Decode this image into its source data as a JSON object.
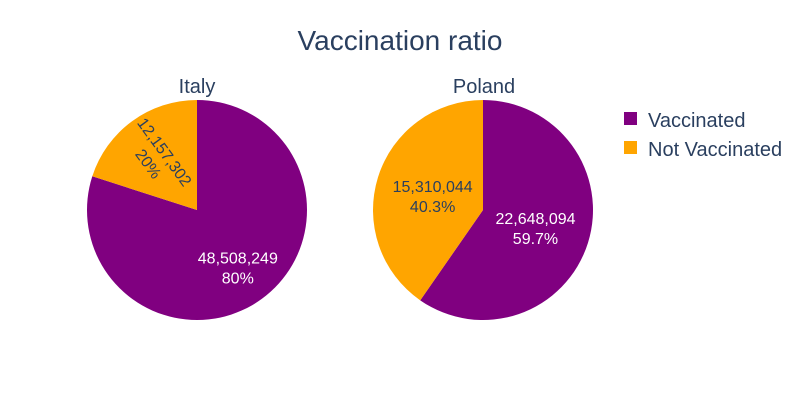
{
  "chart_data": {
    "type": "pie",
    "title": "Vaccination ratio",
    "legend": {
      "placement": "right",
      "entries": [
        {
          "label": "Vaccinated",
          "color": "#800080"
        },
        {
          "label": "Not Vaccinated",
          "color": "#FFA500"
        }
      ]
    },
    "pies": [
      {
        "name": "Italy",
        "slices": [
          {
            "label": "Vaccinated",
            "value": 48508249,
            "value_text": "48,508,249",
            "percent_text": "80%",
            "color": "#800080",
            "text_color": "#ffffff"
          },
          {
            "label": "Not Vaccinated",
            "value": 12157302,
            "value_text": "12,157,302",
            "percent_text": "20%",
            "color": "#FFA500",
            "text_color": "#2a3f5f"
          }
        ]
      },
      {
        "name": "Poland",
        "slices": [
          {
            "label": "Vaccinated",
            "value": 22648094,
            "value_text": "22,648,094",
            "percent_text": "59.7%",
            "color": "#800080",
            "text_color": "#ffffff"
          },
          {
            "label": "Not Vaccinated",
            "value": 15310044,
            "value_text": "15,310,044",
            "percent_text": "40.3%",
            "color": "#FFA500",
            "text_color": "#2a3f5f"
          }
        ]
      }
    ]
  }
}
